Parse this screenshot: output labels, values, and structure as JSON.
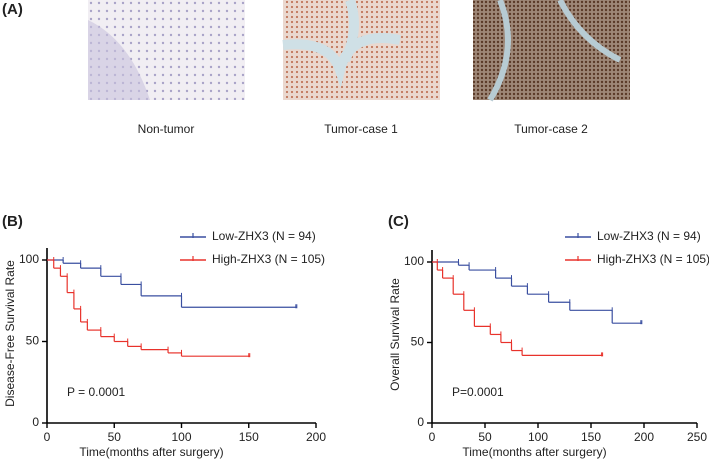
{
  "panel_a": {
    "label": "(A)",
    "captions": [
      "Non-tumor",
      "Tumor-case 1",
      "Tumor-case 2"
    ]
  },
  "chart_data": [
    {
      "type": "line",
      "panel_label": "(B)",
      "xlabel": "Time(months after surgery)",
      "ylabel": "Disease-Free Survival Rate",
      "annotation": "P = 0.0001",
      "xlim": [
        0,
        200
      ],
      "ylim": [
        0,
        100
      ],
      "xticks": [
        0,
        50,
        100,
        150,
        200
      ],
      "yticks": [
        0,
        50,
        100
      ],
      "series": [
        {
          "name": "Low-ZHX3 (N = 94)",
          "color": "#3a4fa0",
          "x": [
            0,
            12,
            25,
            40,
            55,
            70,
            100,
            185
          ],
          "values": [
            100,
            98,
            95,
            90,
            85,
            78,
            71,
            71
          ]
        },
        {
          "name": "High-ZHX3 (N = 105)",
          "color": "#e8322b",
          "x": [
            0,
            5,
            10,
            15,
            20,
            25,
            30,
            40,
            50,
            60,
            70,
            90,
            100,
            150
          ],
          "values": [
            100,
            95,
            90,
            80,
            70,
            62,
            57,
            53,
            50,
            47,
            45,
            43,
            41,
            41
          ]
        }
      ]
    },
    {
      "type": "line",
      "panel_label": "(C)",
      "xlabel": "Time(months after surgery)",
      "ylabel": "Overall Survival Rate",
      "annotation": "P=0.0001",
      "xlim": [
        0,
        250
      ],
      "ylim": [
        0,
        100
      ],
      "xticks": [
        0,
        50,
        100,
        150,
        200,
        250
      ],
      "yticks": [
        0,
        50,
        100
      ],
      "series": [
        {
          "name": "Low-ZHX3 (N = 94)",
          "color": "#3a4fa0",
          "x": [
            0,
            25,
            35,
            60,
            75,
            90,
            110,
            130,
            170,
            197
          ],
          "values": [
            100,
            98,
            95,
            90,
            85,
            80,
            75,
            70,
            62,
            62
          ]
        },
        {
          "name": "High-ZHX3 (N = 105)",
          "color": "#e8322b",
          "x": [
            0,
            5,
            10,
            20,
            30,
            40,
            55,
            65,
            75,
            85,
            160
          ],
          "values": [
            100,
            95,
            90,
            80,
            70,
            60,
            55,
            50,
            45,
            42,
            42
          ]
        }
      ]
    }
  ]
}
